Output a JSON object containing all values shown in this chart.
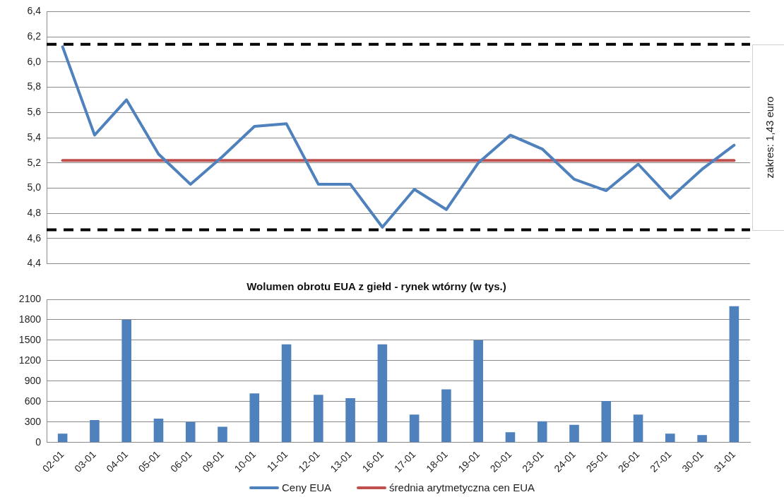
{
  "chart_data": [
    {
      "type": "line",
      "categories": [
        null,
        null,
        null,
        null,
        null,
        null,
        null,
        null,
        null,
        null,
        null,
        null,
        null,
        null,
        null,
        null,
        null,
        null,
        null,
        null,
        null,
        null
      ],
      "series": [
        {
          "name": "Ceny EUA",
          "color": "#4f81bd",
          "values": [
            6.12,
            5.42,
            5.7,
            5.27,
            5.03,
            5.25,
            5.49,
            5.51,
            5.03,
            5.03,
            4.69,
            4.99,
            4.83,
            5.2,
            5.42,
            5.31,
            5.07,
            4.98,
            5.19,
            4.92,
            5.15,
            5.34
          ]
        },
        {
          "name": "średnia arytmetyczna cen EUA",
          "color": "#c0504d",
          "values": [
            5.22,
            5.22,
            5.22,
            5.22,
            5.22,
            5.22,
            5.22,
            5.22,
            5.22,
            5.22,
            5.22,
            5.22,
            5.22,
            5.22,
            5.22,
            5.22,
            5.22,
            5.22,
            5.22,
            5.22,
            5.22,
            5.22
          ]
        }
      ],
      "ylim": [
        4.4,
        6.4
      ],
      "yticks": [
        {
          "value": 4.4,
          "label": "4,4"
        },
        {
          "value": 4.6,
          "label": "4,6"
        },
        {
          "value": 4.8,
          "label": "4,8"
        },
        {
          "value": 5.0,
          "label": "5,0"
        },
        {
          "value": 5.2,
          "label": "5,2"
        },
        {
          "value": 5.4,
          "label": "5,4"
        },
        {
          "value": 5.6,
          "label": "5,6"
        },
        {
          "value": 5.8,
          "label": "5,8"
        },
        {
          "value": 6.0,
          "label": "6,0"
        },
        {
          "value": 6.2,
          "label": "6,2"
        },
        {
          "value": 6.4,
          "label": "6,4"
        }
      ],
      "ref_lines": [
        {
          "axis": "y",
          "value": 6.14,
          "color": "#000000",
          "line_style": "dashed"
        },
        {
          "axis": "y",
          "value": 4.67,
          "color": "#000000",
          "line_style": "dashed"
        }
      ],
      "annotations": [
        "zakres: 1,43 euro"
      ],
      "grid": "y",
      "legend": "bottom",
      "tick_labels": "y",
      "marker": "none",
      "line_style": "solid"
    },
    {
      "type": "bar",
      "title": "Wolumen obrotu EUA z giełd - rynek wtórny (w tys.)",
      "categories": [
        "02-01",
        "03-01",
        "04-01",
        "05-01",
        "06-01",
        "09-01",
        "10-01",
        "11-01",
        "12-01",
        "13-01",
        "16-01",
        "17-01",
        "18-01",
        "19-01",
        "20-01",
        "23-01",
        "24-01",
        "25-01",
        "26-01",
        "27-01",
        "30-01",
        "31-01"
      ],
      "values": [
        130,
        330,
        1800,
        350,
        300,
        230,
        720,
        1440,
        700,
        650,
        1440,
        410,
        780,
        1500,
        150,
        310,
        260,
        610,
        410,
        130,
        110,
        2000
      ],
      "color": "#4f81bd",
      "ylim": [
        0,
        2100
      ],
      "yticks": [
        0,
        300,
        600,
        900,
        1200,
        1500,
        1800,
        2100
      ],
      "grid": "y"
    }
  ]
}
